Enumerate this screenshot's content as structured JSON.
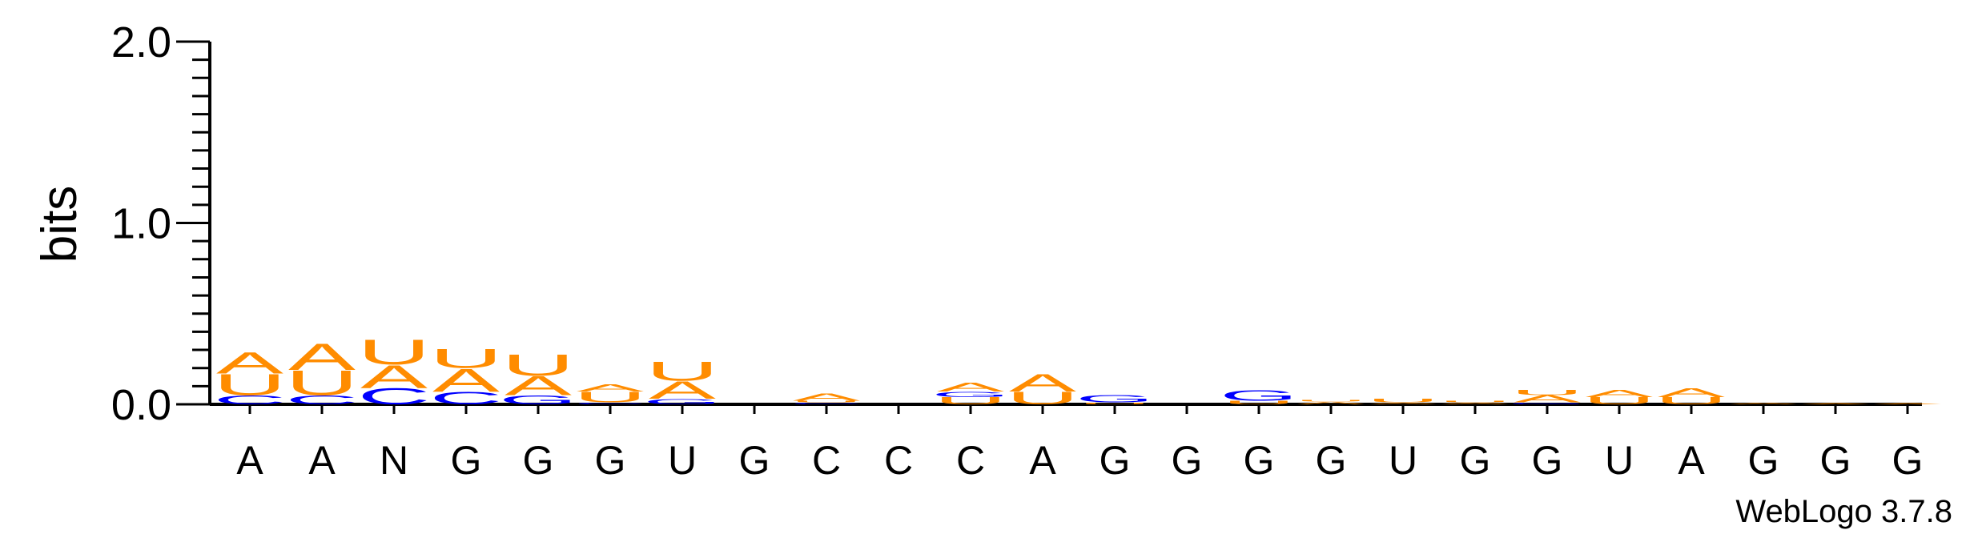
{
  "chart_data": {
    "type": "sequence-logo",
    "ylabel": "bits",
    "ylim": [
      0,
      2
    ],
    "yticks": [
      {
        "value": 0,
        "label": "0.0"
      },
      {
        "value": 1,
        "label": "1.0"
      },
      {
        "value": 2,
        "label": "2.0"
      }
    ],
    "minor_tick_step": 0.1,
    "footer": "WebLogo 3.7.8",
    "colors": {
      "A": "#ff8c00",
      "U": "#ff8c00",
      "C": "#0000ff",
      "G": "#0000ff"
    },
    "positions": [
      {
        "label": "A",
        "stack": [
          [
            "C",
            0.05
          ],
          [
            "U",
            0.12
          ],
          [
            "A",
            0.12
          ]
        ]
      },
      {
        "label": "A",
        "stack": [
          [
            "C",
            0.05
          ],
          [
            "U",
            0.14
          ],
          [
            "A",
            0.15
          ]
        ]
      },
      {
        "label": "N",
        "stack": [
          [
            "C",
            0.09
          ],
          [
            "A",
            0.13
          ],
          [
            "U",
            0.14
          ]
        ]
      },
      {
        "label": "G",
        "stack": [
          [
            "C",
            0.07
          ],
          [
            "A",
            0.13
          ],
          [
            "U",
            0.11
          ]
        ]
      },
      {
        "label": "G",
        "stack": [
          [
            "G",
            0.05
          ],
          [
            "A",
            0.11
          ],
          [
            "U",
            0.12
          ]
        ]
      },
      {
        "label": "G",
        "stack": [
          [
            "C",
            0.01
          ],
          [
            "U",
            0.06
          ],
          [
            "A",
            0.04
          ]
        ]
      },
      {
        "label": "U",
        "stack": [
          [
            "G",
            0.03
          ],
          [
            "A",
            0.1
          ],
          [
            "U",
            0.11
          ]
        ]
      },
      {
        "label": "G",
        "stack": []
      },
      {
        "label": "C",
        "stack": [
          [
            "C",
            0.01
          ],
          [
            "U",
            0.01
          ],
          [
            "A",
            0.04
          ]
        ]
      },
      {
        "label": "C",
        "stack": []
      },
      {
        "label": "C",
        "stack": [
          [
            "U",
            0.04
          ],
          [
            "G",
            0.03
          ],
          [
            "A",
            0.05
          ]
        ]
      },
      {
        "label": "A",
        "stack": [
          [
            "U",
            0.07
          ],
          [
            "A",
            0.1
          ]
        ]
      },
      {
        "label": "G",
        "stack": [
          [
            "U",
            0.01
          ],
          [
            "G",
            0.04
          ]
        ]
      },
      {
        "label": "G",
        "stack": []
      },
      {
        "label": "G",
        "stack": [
          [
            "U",
            0.02
          ],
          [
            "G",
            0.06
          ]
        ]
      },
      {
        "label": "G",
        "stack": [
          [
            "A",
            0.015
          ],
          [
            "U",
            0.01
          ]
        ]
      },
      {
        "label": "U",
        "stack": [
          [
            "A",
            0.01
          ],
          [
            "U",
            0.02
          ]
        ]
      },
      {
        "label": "G",
        "stack": [
          [
            "A",
            0.01
          ],
          [
            "U",
            0.01
          ]
        ]
      },
      {
        "label": "G",
        "stack": [
          [
            "G",
            0.01
          ],
          [
            "A",
            0.04
          ],
          [
            "U",
            0.03
          ]
        ]
      },
      {
        "label": "U",
        "stack": [
          [
            "U",
            0.04
          ],
          [
            "A",
            0.04
          ]
        ]
      },
      {
        "label": "A",
        "stack": [
          [
            "U",
            0.04
          ],
          [
            "A",
            0.05
          ]
        ]
      },
      {
        "label": "G",
        "stack": [
          [
            "A",
            0.01
          ]
        ]
      },
      {
        "label": "G",
        "stack": [
          [
            "A",
            0.005
          ]
        ]
      },
      {
        "label": "G",
        "stack": [
          [
            "A",
            0.005
          ]
        ]
      }
    ]
  }
}
